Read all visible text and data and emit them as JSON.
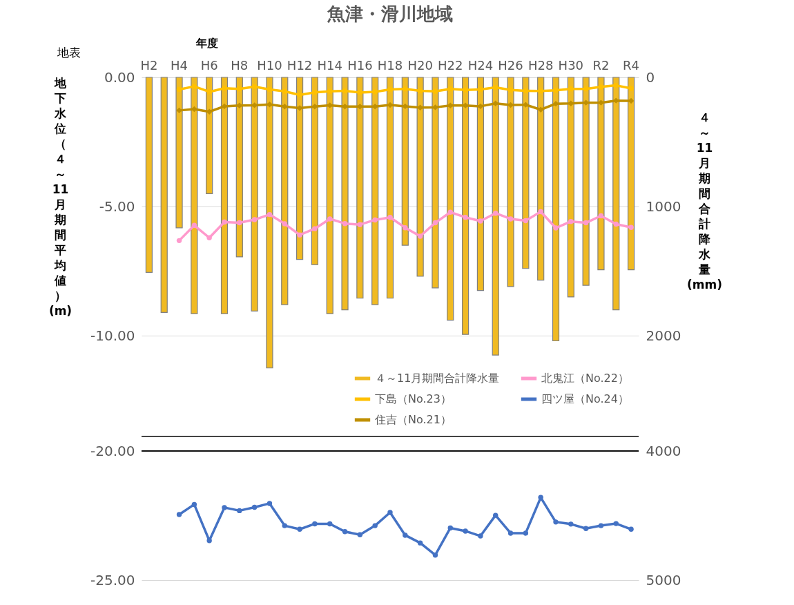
{
  "chart_data": [
    {
      "type": "bar",
      "title": "魚津・滑川地域",
      "xlabel": "年度",
      "ylabel": "地下水位（４～11月期間平均値）(m)",
      "y2label": "４～11月期間合計降水量(mm)",
      "annotations": [
        "地表"
      ],
      "categories": [
        "H2",
        null,
        "H4",
        null,
        "H6",
        null,
        "H8",
        null,
        "H10",
        null,
        "H12",
        null,
        "H14",
        null,
        "H16",
        null,
        "H18",
        null,
        "H20",
        null,
        "H22",
        null,
        "H24",
        null,
        "H26",
        null,
        "H28",
        null,
        "H30",
        null,
        "R2",
        null,
        "R4"
      ],
      "series": [
        {
          "name": "４～11月期間合計降水量",
          "type": "bar",
          "axis": "y2",
          "color": "#f0ba22",
          "values": [
            1510,
            1820,
            1165,
            1830,
            900,
            1830,
            1390,
            1810,
            2250,
            1760,
            1410,
            1450,
            1830,
            1800,
            1710,
            1760,
            1710,
            1300,
            1540,
            1630,
            1880,
            1990,
            1650,
            2150,
            1620,
            1480,
            1570,
            2040,
            1700,
            1610,
            1490,
            1800,
            1490
          ]
        },
        {
          "name": "下島（No.23）",
          "type": "line",
          "color": "#ffc000",
          "marker": "circle",
          "values": [
            null,
            null,
            -0.47,
            -0.35,
            -0.56,
            -0.42,
            -0.45,
            -0.36,
            -0.47,
            -0.54,
            -0.68,
            -0.58,
            -0.54,
            -0.52,
            -0.59,
            -0.56,
            -0.47,
            -0.45,
            -0.52,
            -0.54,
            -0.45,
            -0.49,
            -0.47,
            -0.39,
            -0.49,
            -0.52,
            -0.53,
            -0.5,
            -0.45,
            -0.45,
            -0.37,
            -0.31,
            -0.43
          ]
        },
        {
          "name": "住吉（No.21）",
          "type": "line",
          "color": "#bf8f00",
          "marker": "diamond",
          "values": [
            null,
            null,
            -1.28,
            -1.23,
            -1.33,
            -1.12,
            -1.09,
            -1.08,
            -1.05,
            -1.13,
            -1.19,
            -1.13,
            -1.08,
            -1.13,
            -1.13,
            -1.13,
            -1.07,
            -1.12,
            -1.17,
            -1.16,
            -1.09,
            -1.09,
            -1.12,
            -1.01,
            -1.07,
            -1.06,
            -1.25,
            -1.02,
            -1.01,
            -0.98,
            -0.98,
            -0.9,
            -0.91
          ]
        },
        {
          "name": "北鬼江（No.22）",
          "type": "line",
          "color": "#ff99cc",
          "marker": "circle",
          "values": [
            null,
            null,
            -6.32,
            -5.73,
            -6.21,
            -5.6,
            -5.63,
            -5.51,
            -5.31,
            -5.67,
            -6.1,
            -5.86,
            -5.48,
            -5.66,
            -5.7,
            -5.52,
            -5.42,
            -5.82,
            -6.15,
            -5.63,
            -5.22,
            -5.42,
            -5.56,
            -5.26,
            -5.48,
            -5.55,
            -5.2,
            -5.83,
            -5.58,
            -5.63,
            -5.36,
            -5.68,
            -5.81
          ]
        }
      ],
      "ylim": [
        -13.9,
        0
      ],
      "yticks": [
        {
          "value": 0,
          "label": "0.00"
        },
        {
          "value": -5,
          "label": "-5.00"
        },
        {
          "value": -10,
          "label": "-10.00"
        }
      ],
      "y2lim": [
        2780,
        0
      ],
      "y2ticks": [
        0,
        1000,
        2000
      ],
      "grid": "y",
      "legend": "bottom"
    },
    {
      "type": "line",
      "categories": [
        null,
        null,
        null,
        null,
        null,
        null,
        null,
        null,
        null,
        null,
        null,
        null,
        null,
        null,
        null,
        null,
        null,
        null,
        null,
        null,
        null,
        null,
        null,
        null,
        null,
        null,
        null,
        null,
        null,
        null,
        null,
        null,
        null
      ],
      "series": [
        {
          "name": "四ツ屋（No.24）",
          "color": "#4472c4",
          "marker": "circle",
          "values": [
            null,
            null,
            -22.46,
            -22.07,
            -23.47,
            -22.19,
            -22.31,
            -22.18,
            -22.03,
            -22.89,
            -23.03,
            -22.82,
            -22.82,
            -23.12,
            -23.24,
            -22.89,
            -22.38,
            -23.26,
            -23.56,
            -24.03,
            -22.98,
            -23.1,
            -23.29,
            -22.49,
            -23.18,
            -23.18,
            -21.8,
            -22.75,
            -22.83,
            -23.0,
            -22.89,
            -22.81,
            -23.03
          ]
        }
      ],
      "ylim": [
        -25,
        -20
      ],
      "yticks": [
        {
          "value": -20,
          "label": "-20.00"
        },
        {
          "value": -25,
          "label": "-25.00"
        }
      ],
      "y2lim": [
        5000,
        4000
      ],
      "y2ticks": [
        4000,
        5000
      ],
      "grid": "y",
      "tick_labels": "y"
    }
  ]
}
